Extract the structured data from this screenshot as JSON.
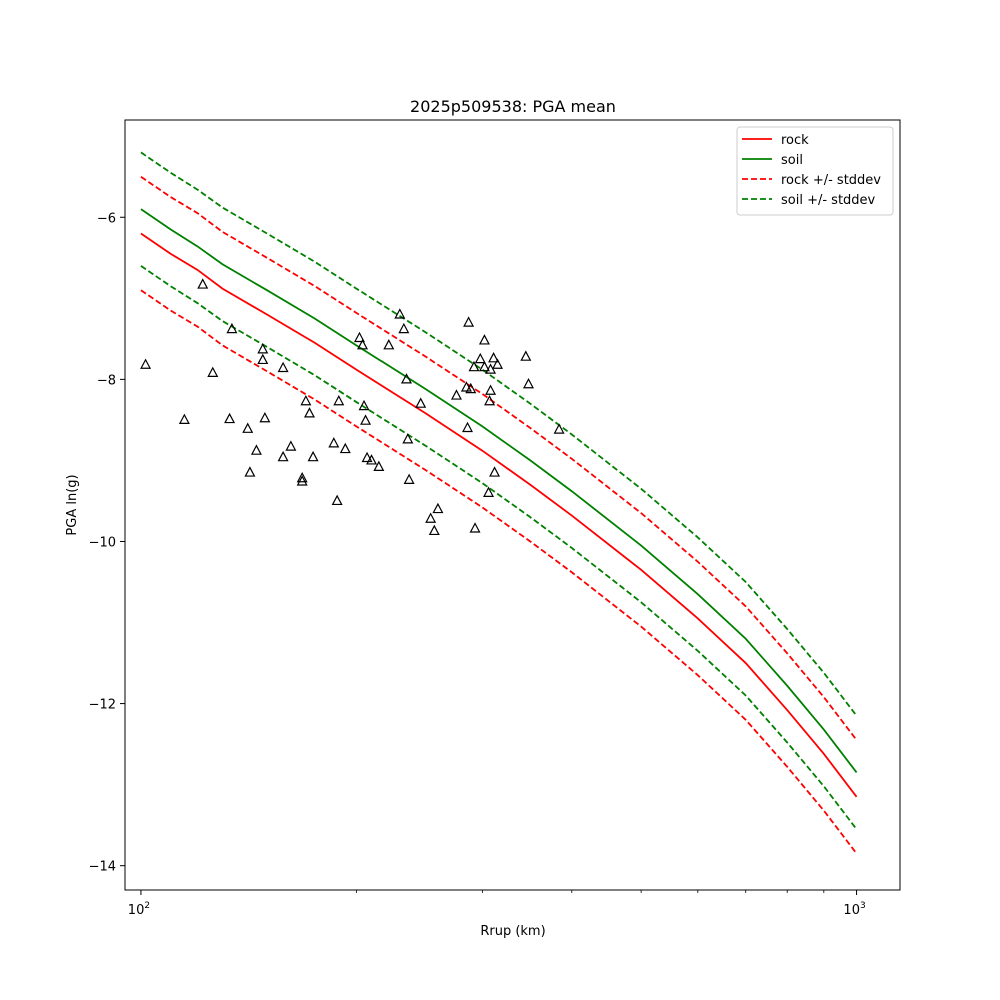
{
  "chart_data": {
    "type": "scatter",
    "title": "2025p509538: PGA mean",
    "xlabel": "Rrup (km)",
    "ylabel": "PGA ln(g)",
    "xscale": "log",
    "xlim": [
      95,
      1150
    ],
    "ylim": [
      -14.3,
      -4.8
    ],
    "x_ticks": [
      {
        "value": 100,
        "base": "10",
        "exp": "2"
      },
      {
        "value": 1000,
        "base": "10",
        "exp": "3"
      }
    ],
    "y_ticks": [
      {
        "value": -6,
        "label": "−6"
      },
      {
        "value": -8,
        "label": "−8"
      },
      {
        "value": -10,
        "label": "−10"
      },
      {
        "value": -12,
        "label": "−12"
      },
      {
        "value": -14,
        "label": "−14"
      }
    ],
    "grid": false,
    "legend_position": "top-right",
    "series": [
      {
        "name": "rock",
        "color": "#ff0000",
        "style": "solid",
        "x": [
          100,
          110,
          120,
          130,
          150,
          175,
          200,
          250,
          300,
          350,
          400,
          500,
          600,
          700,
          800,
          900,
          1000
        ],
        "y": [
          -6.2,
          -6.45,
          -6.65,
          -6.88,
          -7.2,
          -7.55,
          -7.88,
          -8.42,
          -8.88,
          -9.3,
          -9.68,
          -10.35,
          -10.95,
          -11.5,
          -12.08,
          -12.62,
          -13.15
        ]
      },
      {
        "name": "soil",
        "color": "#008000",
        "style": "solid",
        "x": [
          100,
          110,
          120,
          130,
          150,
          175,
          200,
          250,
          300,
          350,
          400,
          500,
          600,
          700,
          800,
          900,
          1000
        ],
        "y": [
          -5.9,
          -6.15,
          -6.36,
          -6.58,
          -6.9,
          -7.25,
          -7.58,
          -8.12,
          -8.58,
          -9.0,
          -9.38,
          -10.05,
          -10.65,
          -11.2,
          -11.78,
          -12.32,
          -12.85
        ]
      },
      {
        "name": "rock +/- stddev",
        "color": "#ff0000",
        "style": "dashed",
        "x": [
          100,
          110,
          120,
          130,
          150,
          175,
          200,
          250,
          300,
          350,
          400,
          500,
          600,
          700,
          800,
          900,
          1000
        ],
        "y": [
          -5.5,
          -5.75,
          -5.95,
          -6.18,
          -6.5,
          -6.85,
          -7.18,
          -7.72,
          -8.18,
          -8.6,
          -8.98,
          -9.65,
          -10.25,
          -10.8,
          -11.38,
          -11.92,
          -12.45
        ]
      },
      {
        "name": "soil +/- stddev",
        "color": "#008000",
        "style": "dashed",
        "x": [
          100,
          110,
          120,
          130,
          150,
          175,
          200,
          250,
          300,
          350,
          400,
          500,
          600,
          700,
          800,
          900,
          1000
        ],
        "y": [
          -5.2,
          -5.45,
          -5.66,
          -5.88,
          -6.2,
          -6.55,
          -6.88,
          -7.42,
          -7.88,
          -8.3,
          -8.68,
          -9.35,
          -9.95,
          -10.5,
          -11.08,
          -11.62,
          -12.15
        ]
      },
      {
        "name": "",
        "color": "#ff0000",
        "style": "dashed",
        "x": [
          100,
          110,
          120,
          130,
          150,
          175,
          200,
          250,
          300,
          350,
          400,
          500,
          600,
          700,
          800,
          900,
          1000
        ],
        "y": [
          -6.9,
          -7.15,
          -7.35,
          -7.58,
          -7.9,
          -8.25,
          -8.58,
          -9.12,
          -9.58,
          -10.0,
          -10.38,
          -11.05,
          -11.65,
          -12.2,
          -12.78,
          -13.32,
          -13.85
        ]
      },
      {
        "name": "",
        "color": "#008000",
        "style": "dashed",
        "x": [
          100,
          110,
          120,
          130,
          150,
          175,
          200,
          250,
          300,
          350,
          400,
          500,
          600,
          700,
          800,
          900,
          1000
        ],
        "y": [
          -6.6,
          -6.85,
          -7.06,
          -7.28,
          -7.6,
          -7.95,
          -8.28,
          -8.82,
          -9.28,
          -9.7,
          -10.08,
          -10.75,
          -11.35,
          -11.9,
          -12.48,
          -13.02,
          -13.55
        ]
      }
    ],
    "observations": {
      "marker": "triangle-open",
      "color": "#000000",
      "points": [
        [
          101.5,
          -7.82
        ],
        [
          115,
          -8.5
        ],
        [
          122,
          -6.83
        ],
        [
          126,
          -7.92
        ],
        [
          133,
          -8.49
        ],
        [
          134,
          -7.38
        ],
        [
          141,
          -8.61
        ],
        [
          142,
          -9.15
        ],
        [
          145,
          -8.88
        ],
        [
          148,
          -7.63
        ],
        [
          148,
          -7.76
        ],
        [
          149,
          -8.48
        ],
        [
          158,
          -7.86
        ],
        [
          158,
          -8.96
        ],
        [
          162,
          -8.83
        ],
        [
          168,
          -9.22
        ],
        [
          168,
          -9.26
        ],
        [
          170,
          -8.27
        ],
        [
          172,
          -8.42
        ],
        [
          174,
          -8.96
        ],
        [
          186,
          -8.79
        ],
        [
          188,
          -9.5
        ],
        [
          189,
          -8.27
        ],
        [
          193,
          -8.86
        ],
        [
          202,
          -7.49
        ],
        [
          204,
          -7.58
        ],
        [
          205,
          -8.33
        ],
        [
          206,
          -8.51
        ],
        [
          207,
          -8.97
        ],
        [
          210,
          -9.0
        ],
        [
          215,
          -9.08
        ],
        [
          222,
          -7.58
        ],
        [
          230,
          -7.2
        ],
        [
          233,
          -7.38
        ],
        [
          235,
          -8.0
        ],
        [
          236,
          -8.74
        ],
        [
          237,
          -9.24
        ],
        [
          246,
          -8.3
        ],
        [
          254,
          -9.72
        ],
        [
          257,
          -9.87
        ],
        [
          260,
          -9.6
        ],
        [
          276,
          -8.2
        ],
        [
          285,
          -8.1
        ],
        [
          286,
          -8.6
        ],
        [
          287,
          -7.3
        ],
        [
          289,
          -8.12
        ],
        [
          292,
          -7.85
        ],
        [
          293,
          -9.84
        ],
        [
          298,
          -7.75
        ],
        [
          302,
          -7.52
        ],
        [
          302,
          -7.85
        ],
        [
          306,
          -9.4
        ],
        [
          307,
          -8.27
        ],
        [
          308,
          -7.88
        ],
        [
          308,
          -8.14
        ],
        [
          311,
          -7.74
        ],
        [
          312,
          -9.15
        ],
        [
          315,
          -7.82
        ],
        [
          345,
          -7.72
        ],
        [
          348,
          -8.06
        ],
        [
          384,
          -8.62
        ]
      ]
    }
  }
}
